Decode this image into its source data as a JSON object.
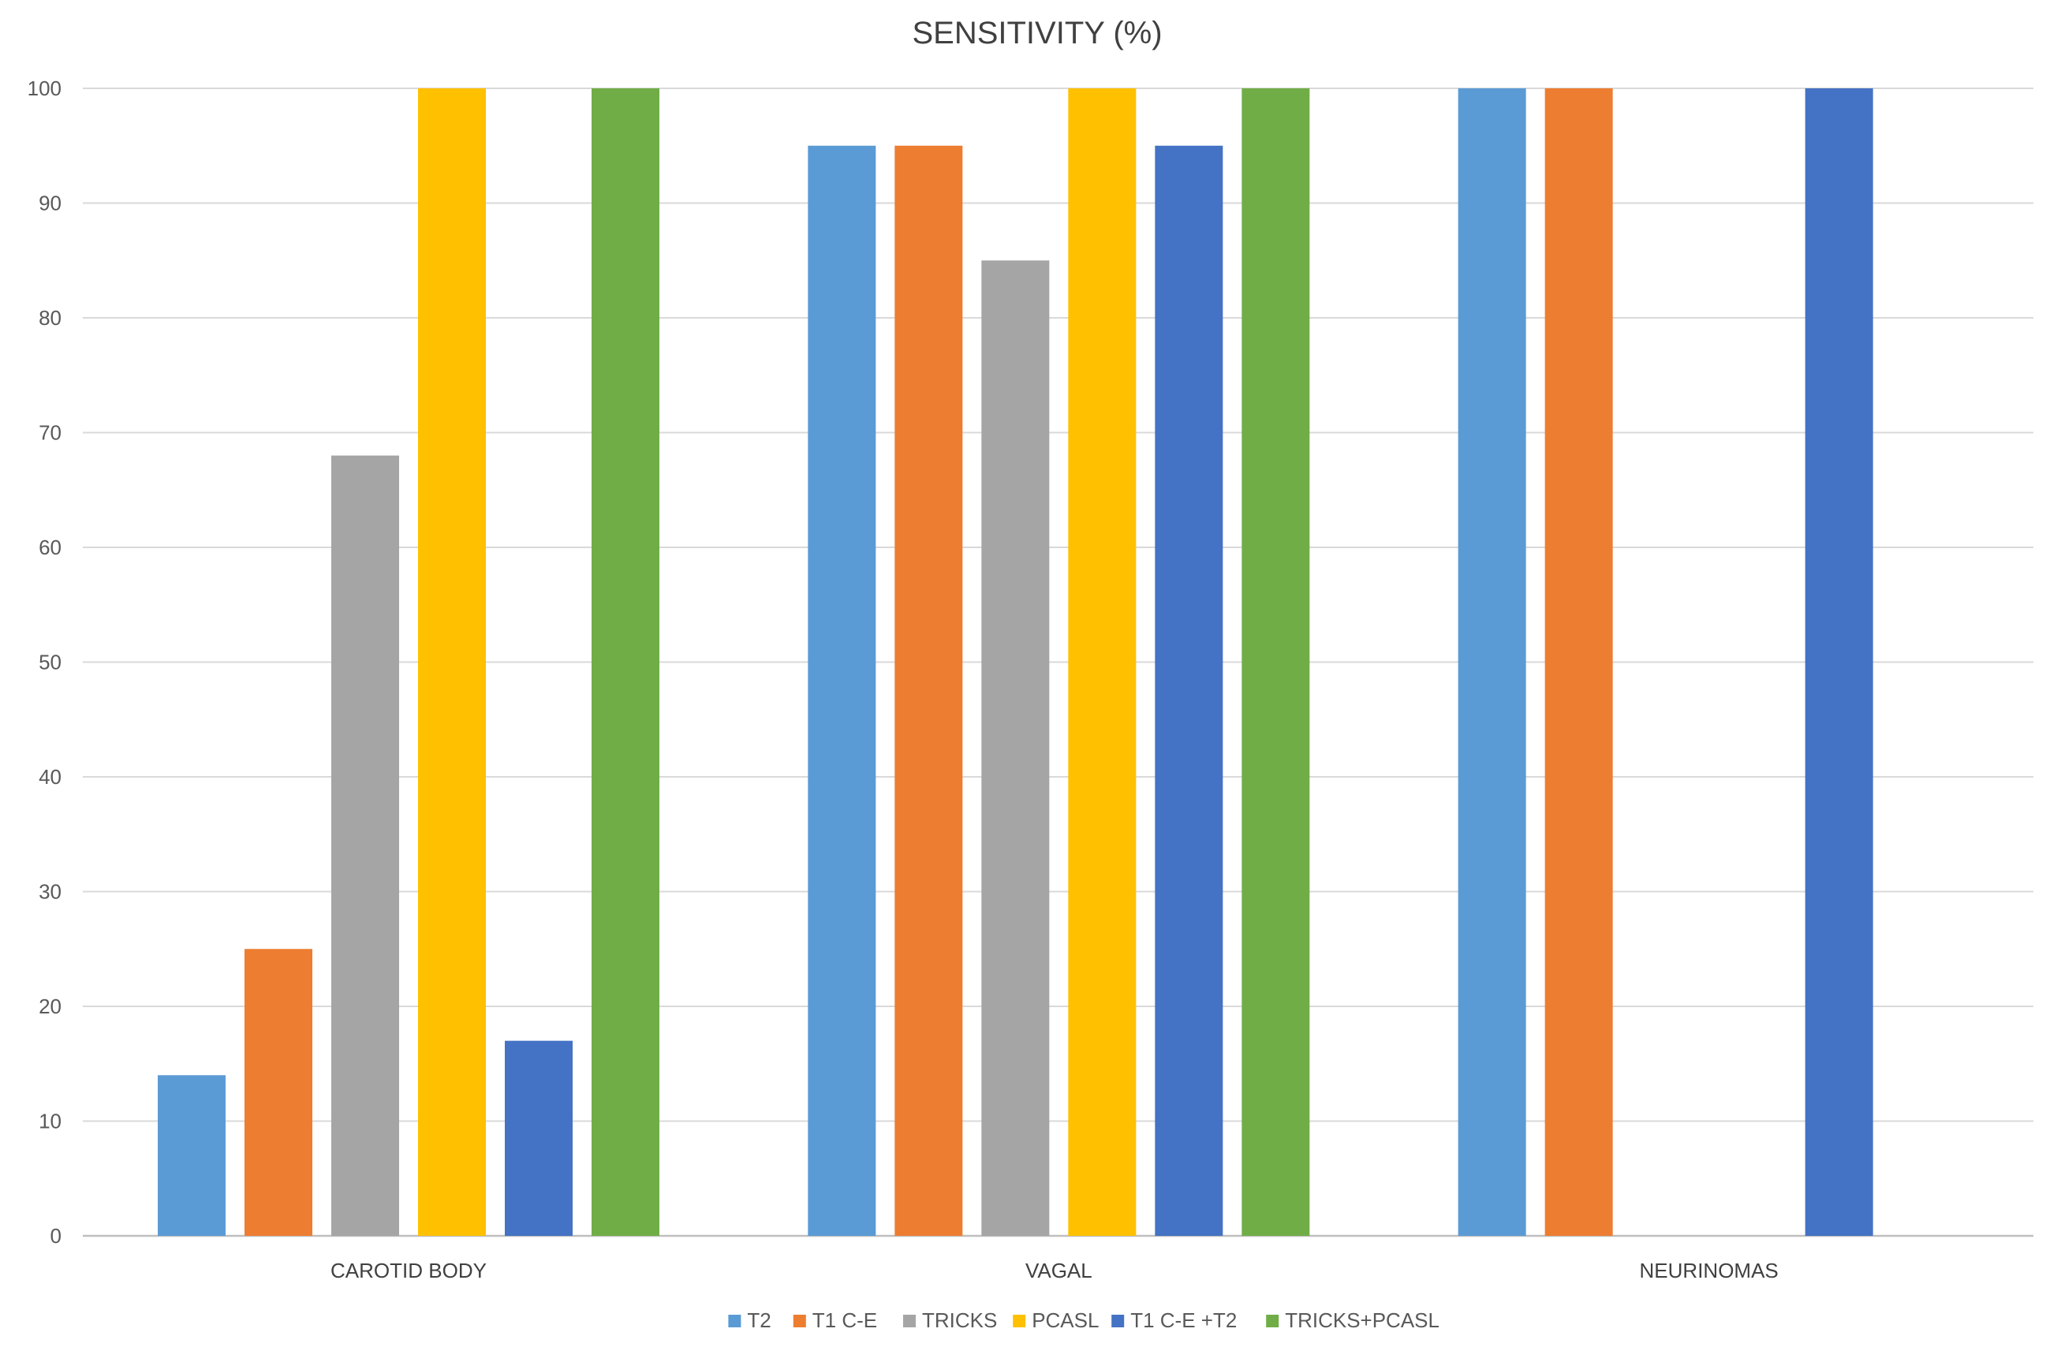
{
  "chart_data": {
    "type": "bar",
    "title": "SENSITIVITY (%)",
    "xlabel": "",
    "ylabel": "",
    "ylim": [
      0,
      100
    ],
    "yticks": [
      0,
      10,
      20,
      30,
      40,
      50,
      60,
      70,
      80,
      90,
      100
    ],
    "grid": true,
    "legend_position": "bottom",
    "categories": [
      "CAROTID BODY",
      "VAGAL",
      "NEURINOMAS"
    ],
    "series": [
      {
        "name": "T2",
        "color": "#5b9bd5",
        "values": [
          14,
          95,
          100
        ]
      },
      {
        "name": "T1 C-E",
        "color": "#ed7d31",
        "values": [
          25,
          95,
          100
        ]
      },
      {
        "name": "TRICKS",
        "color": "#a5a5a5",
        "values": [
          68,
          85,
          null
        ]
      },
      {
        "name": "PCASL",
        "color": "#ffc000",
        "values": [
          100,
          100,
          null
        ]
      },
      {
        "name": "T1 C-E +T2",
        "color": "#4472c4",
        "values": [
          17,
          95,
          100
        ]
      },
      {
        "name": "TRICKS+PCASL",
        "color": "#70ad47",
        "values": [
          100,
          100,
          null
        ]
      }
    ]
  }
}
